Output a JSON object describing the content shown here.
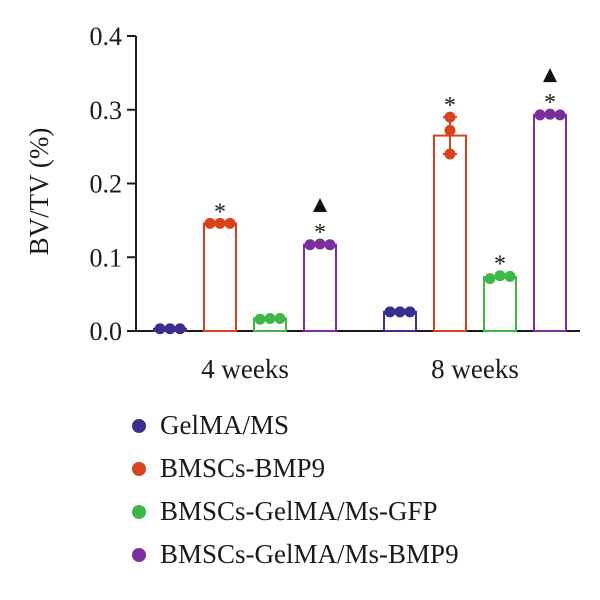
{
  "chart_data": {
    "type": "bar",
    "ylabel": "BV/TV (%)",
    "ylim": [
      0,
      0.4
    ],
    "yticks": [
      "0.0",
      "0.1",
      "0.2",
      "0.3",
      "0.4"
    ],
    "categories": [
      "4 weeks",
      "8 weeks"
    ],
    "series": [
      {
        "name": "GelMA/MS",
        "color": "#3a2f8f",
        "values": [
          0.003,
          0.026
        ],
        "points": [
          [
            0.003,
            0.003,
            0.003
          ],
          [
            0.026,
            0.026,
            0.026
          ]
        ],
        "error": [
          0,
          0
        ],
        "marks": [
          "",
          ""
        ]
      },
      {
        "name": "BMSCs-BMP9",
        "color": "#d9421e",
        "values": [
          0.146,
          0.265
        ],
        "points": [
          [
            0.146,
            0.146,
            0.146
          ],
          [
            0.29,
            0.272,
            0.24
          ]
        ],
        "error": [
          0,
          0.025
        ],
        "marks": [
          "*",
          "*"
        ]
      },
      {
        "name": "BMSCs-GelMA/Ms-GFP",
        "color": "#3fb64a",
        "values": [
          0.017,
          0.073
        ],
        "points": [
          [
            0.016,
            0.017,
            0.017
          ],
          [
            0.071,
            0.075,
            0.074
          ]
        ],
        "error": [
          0,
          0
        ],
        "marks": [
          "",
          "*"
        ]
      },
      {
        "name": "BMSCs-GelMA/Ms-BMP9",
        "color": "#7b2f9e",
        "values": [
          0.117,
          0.293
        ],
        "points": [
          [
            0.117,
            0.118,
            0.117
          ],
          [
            0.293,
            0.294,
            0.293
          ]
        ],
        "error": [
          0,
          0
        ],
        "marks": [
          "*▲",
          "*▲"
        ]
      }
    ],
    "grid": false,
    "legend_position": "bottom"
  }
}
